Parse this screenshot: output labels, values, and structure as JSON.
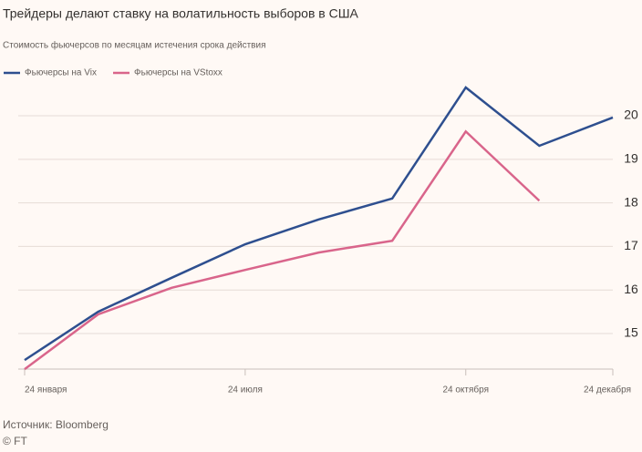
{
  "chart_data": {
    "type": "line",
    "title": "Трейдеры делают ставку на волатильность выборов в США",
    "subtitle": "Стоимость фьючерсов по месяцам истечения срока действия",
    "categories": [
      "24 января",
      null,
      null,
      "24 июля",
      null,
      null,
      "24 октября",
      null,
      "24 декабря"
    ],
    "series": [
      {
        "name": "Фьючерсы на Vix",
        "color": "#2e4f8f",
        "values": [
          14.39,
          15.5,
          16.28,
          17.05,
          17.62,
          18.1,
          20.65,
          19.31,
          19.96
        ]
      },
      {
        "name": "Фьючерсы на VStoxx",
        "color": "#d9658b",
        "values": [
          14.18,
          15.44,
          16.05,
          16.46,
          16.86,
          17.13,
          19.64,
          18.05,
          null
        ]
      }
    ],
    "ylim": [
      14.1,
      20.8
    ],
    "yticks": [
      15,
      16,
      17,
      18,
      19,
      20
    ],
    "grid": true,
    "source": "Источник: Bloomberg",
    "credit": "© FT"
  }
}
